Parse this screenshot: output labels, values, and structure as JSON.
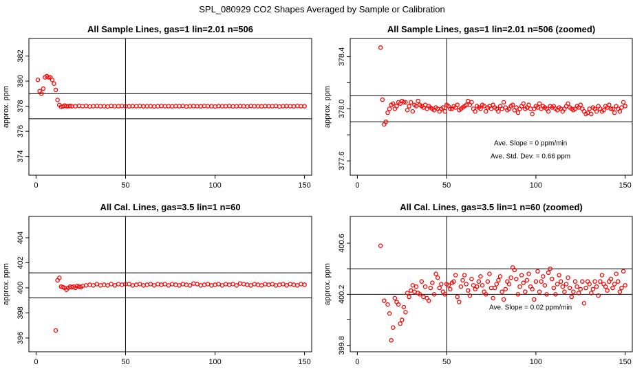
{
  "page_title": "SPL_080929  CO2 Shapes Averaged by Sample or Calibration",
  "chart_data": [
    {
      "type": "scatter",
      "title": "All Sample Lines, gas=1 lin=2.01 n=506",
      "ylabel": "approx. ppm",
      "xlabel": "",
      "xlim": [
        -4,
        154
      ],
      "ylim": [
        372.5,
        383.4
      ],
      "xticks": [
        0,
        50,
        100,
        150
      ],
      "yticks": [
        374,
        376,
        378,
        380,
        382
      ],
      "hlines": [
        379.0,
        377.0
      ],
      "vline": 50,
      "marker_color": "#ff0000",
      "points": {
        "x": [
          1,
          2,
          3,
          4,
          5,
          6,
          7,
          8,
          9,
          10,
          11,
          12,
          13,
          14,
          15,
          16,
          17,
          18,
          19,
          20,
          22,
          24,
          26,
          28,
          30,
          32,
          34,
          36,
          38,
          40,
          42,
          44,
          46,
          48,
          50,
          52,
          54,
          56,
          58,
          60,
          62,
          64,
          66,
          68,
          70,
          72,
          74,
          76,
          78,
          80,
          82,
          84,
          86,
          88,
          90,
          92,
          94,
          96,
          98,
          100,
          102,
          104,
          106,
          108,
          110,
          112,
          114,
          116,
          118,
          120,
          122,
          124,
          126,
          128,
          130,
          132,
          134,
          136,
          138,
          140,
          142,
          144,
          146,
          148,
          150
        ],
        "y": [
          380.1,
          379.2,
          379.0,
          379.4,
          380.3,
          380.4,
          380.3,
          380.3,
          380.1,
          379.8,
          379.3,
          378.5,
          378.1,
          377.95,
          377.98,
          378.05,
          378.0,
          378.0,
          378.02,
          378.0,
          378.0,
          378.03,
          378.0,
          378.02,
          377.98,
          378.0,
          378.02,
          378.0,
          378.0,
          377.98,
          378.02,
          378.0,
          378.0,
          378.02,
          378.0,
          377.99,
          378.01,
          378.0,
          378.02,
          377.99,
          378.0,
          378.01,
          377.98,
          378.0,
          378.02,
          378.0,
          378.0,
          377.99,
          378.01,
          378.0,
          378.02,
          377.98,
          378.0,
          378.01,
          378.0,
          377.99,
          378.02,
          378.0,
          378.0,
          377.98,
          378.01,
          378.0,
          378.0,
          378.02,
          377.99,
          378.0,
          378.01,
          378.0,
          377.98,
          378.02,
          378.0,
          378.0,
          377.99,
          378.01,
          378.0,
          378.0,
          378.02,
          377.98,
          378.0,
          378.01,
          378.0,
          377.99,
          378.02,
          378.0,
          378.0
        ]
      },
      "annotations": []
    },
    {
      "type": "scatter",
      "title": "All Sample Lines, gas=1 lin=2.01 n=506 (zoomed)",
      "ylabel": "approx. ppm",
      "xlabel": "",
      "xlim": [
        -4,
        154
      ],
      "ylim": [
        377.49,
        378.54
      ],
      "xticks": [
        0,
        50,
        100,
        150
      ],
      "yticks": [
        377.6,
        377.8,
        378.0,
        378.2,
        378.4
      ],
      "ytick_labels": [
        "377.6",
        "",
        "378.0",
        "",
        "378.4"
      ],
      "hlines": [
        378.1,
        377.9
      ],
      "vline": 50,
      "marker_color": "#ff0000",
      "points": {
        "x": [
          13,
          14,
          15,
          16,
          17,
          18,
          19,
          20,
          21,
          22,
          23,
          24,
          25,
          26,
          27,
          28,
          29,
          30,
          31,
          32,
          33,
          34,
          35,
          36,
          37,
          38,
          39,
          40,
          41,
          42,
          43,
          44,
          45,
          46,
          47,
          48,
          49,
          50,
          51,
          52,
          53,
          54,
          55,
          56,
          57,
          58,
          59,
          60,
          61,
          62,
          63,
          64,
          65,
          66,
          67,
          68,
          69,
          70,
          71,
          72,
          73,
          74,
          75,
          76,
          77,
          78,
          79,
          80,
          81,
          82,
          83,
          84,
          85,
          86,
          87,
          88,
          89,
          90,
          91,
          92,
          93,
          94,
          95,
          96,
          97,
          98,
          99,
          100,
          101,
          102,
          103,
          104,
          105,
          106,
          107,
          108,
          109,
          110,
          111,
          112,
          113,
          114,
          115,
          116,
          117,
          118,
          119,
          120,
          121,
          122,
          123,
          124,
          125,
          126,
          127,
          128,
          129,
          130,
          131,
          132,
          133,
          134,
          135,
          136,
          137,
          138,
          139,
          140,
          141,
          142,
          143,
          144,
          145,
          146,
          147,
          148,
          149,
          150
        ],
        "y": [
          378.47,
          378.07,
          377.88,
          377.9,
          377.97,
          378.0,
          378.03,
          378.04,
          378.0,
          378.02,
          378.05,
          378.04,
          378.06,
          378.05,
          378.05,
          377.99,
          378.02,
          378.05,
          377.98,
          378.03,
          378.02,
          378.06,
          378.03,
          378.02,
          378.01,
          378.03,
          378.0,
          378.02,
          378.01,
          378.0,
          377.99,
          378.01,
          378.0,
          377.98,
          378.0,
          378.01,
          377.98,
          378.03,
          378.02,
          378.0,
          378.0,
          378.02,
          378.01,
          378.03,
          377.99,
          378.0,
          378.01,
          378.02,
          378.03,
          378.06,
          378.03,
          378.05,
          378.0,
          377.98,
          378.02,
          378.01,
          378.0,
          378.03,
          378.02,
          377.98,
          378.01,
          378.02,
          378.0,
          378.03,
          378.01,
          378.0,
          377.98,
          378.02,
          378.0,
          378.05,
          378.01,
          377.99,
          378.0,
          378.02,
          378.03,
          377.99,
          378.01,
          377.97,
          378.0,
          378.02,
          378.04,
          378.0,
          378.01,
          378.03,
          378.0,
          377.96,
          378.0,
          378.02,
          378.01,
          378.04,
          378.0,
          378.02,
          378.01,
          378.0,
          377.98,
          378.02,
          378.01,
          378.02,
          378.0,
          377.99,
          378.01,
          378.0,
          377.98,
          378.0,
          378.02,
          378.04,
          378.01,
          378.0,
          377.99,
          378.0,
          378.02,
          378.01,
          378.03,
          378.0,
          377.98,
          377.96,
          377.97,
          378.0,
          377.96,
          378.01,
          378.0,
          377.98,
          378.02,
          378.0,
          377.98,
          377.99,
          378.02,
          378.01,
          378.03,
          378.0,
          378.0,
          377.97,
          378.02,
          378.0,
          377.98,
          378.01,
          378.05,
          378.02
        ]
      },
      "annotations": [
        {
          "text": "Ave. Slope =  0  ppm/min",
          "x": 97,
          "y": 377.72
        },
        {
          "text": "Ave. Std. Dev. =  0.66  ppm",
          "x": 97,
          "y": 377.62
        }
      ]
    },
    {
      "type": "scatter",
      "title": "All Cal. Lines, gas=3.5 lin=1 n=60",
      "ylabel": "approx. ppm",
      "xlabel": "",
      "xlim": [
        -4,
        154
      ],
      "ylim": [
        394.9,
        405.7
      ],
      "xticks": [
        0,
        50,
        100,
        150
      ],
      "yticks": [
        396,
        398,
        400,
        402,
        404
      ],
      "hlines": [
        401.2,
        399.2
      ],
      "vline": 50,
      "marker_color": "#ff0000",
      "points": {
        "x": [
          11,
          12,
          13,
          14,
          15,
          16,
          17,
          18,
          19,
          20,
          21,
          22,
          23,
          24,
          25,
          26,
          28,
          30,
          32,
          34,
          36,
          38,
          40,
          42,
          44,
          46,
          48,
          50,
          52,
          54,
          56,
          58,
          60,
          62,
          64,
          66,
          68,
          70,
          72,
          74,
          76,
          78,
          80,
          82,
          84,
          86,
          88,
          90,
          92,
          94,
          96,
          98,
          100,
          102,
          104,
          106,
          108,
          110,
          112,
          114,
          116,
          118,
          120,
          122,
          124,
          126,
          128,
          130,
          132,
          134,
          136,
          138,
          140,
          142,
          144,
          146,
          148,
          150
        ],
        "y": [
          396.6,
          400.6,
          400.8,
          400.1,
          400.05,
          400.0,
          399.85,
          400.0,
          400.1,
          400.05,
          400.1,
          400.0,
          400.15,
          400.1,
          400.05,
          400.15,
          400.2,
          400.25,
          400.2,
          400.3,
          400.2,
          400.25,
          400.2,
          400.3,
          400.2,
          400.3,
          400.25,
          400.3,
          400.3,
          400.2,
          400.25,
          400.3,
          400.2,
          400.25,
          400.3,
          400.2,
          400.3,
          400.25,
          400.3,
          400.2,
          400.3,
          400.25,
          400.2,
          400.3,
          400.25,
          400.2,
          400.35,
          400.3,
          400.2,
          400.25,
          400.3,
          400.2,
          400.25,
          400.3,
          400.2,
          400.3,
          400.25,
          400.3,
          400.2,
          400.35,
          400.3,
          400.25,
          400.2,
          400.3,
          400.25,
          400.2,
          400.3,
          400.25,
          400.3,
          400.2,
          400.25,
          400.3,
          400.2,
          400.3,
          400.25,
          400.2,
          400.3,
          400.25
        ]
      },
      "annotations": []
    },
    {
      "type": "scatter",
      "title": "All Cal. Lines, gas=3.5 lin=1 n=60 (zoomed)",
      "ylabel": "approx. ppm",
      "xlabel": "",
      "xlim": [
        -4,
        154
      ],
      "ylim": [
        399.75,
        400.81
      ],
      "xticks": [
        0,
        50,
        100,
        150
      ],
      "yticks": [
        399.8,
        400.0,
        400.2,
        400.4,
        400.6
      ],
      "ytick_labels": [
        "399.8",
        "",
        "400.2",
        "",
        "400.6"
      ],
      "hlines": [
        400.4,
        400.2
      ],
      "vline": 50,
      "marker_color": "#ff0000",
      "points": {
        "x": [
          13,
          15,
          17,
          18,
          19,
          20,
          21,
          22,
          23,
          24,
          25,
          26,
          27,
          28,
          29,
          30,
          31,
          32,
          33,
          34,
          35,
          36,
          37,
          38,
          39,
          40,
          41,
          42,
          43,
          44,
          45,
          46,
          47,
          48,
          49,
          50,
          51,
          52,
          53,
          54,
          55,
          56,
          57,
          58,
          59,
          60,
          61,
          62,
          63,
          64,
          65,
          66,
          67,
          68,
          69,
          70,
          71,
          72,
          73,
          74,
          75,
          76,
          77,
          78,
          79,
          80,
          81,
          82,
          83,
          84,
          85,
          86,
          87,
          88,
          89,
          90,
          91,
          92,
          93,
          94,
          95,
          96,
          97,
          98,
          99,
          100,
          101,
          102,
          103,
          104,
          105,
          106,
          107,
          108,
          109,
          110,
          111,
          112,
          113,
          114,
          115,
          116,
          117,
          118,
          119,
          120,
          121,
          122,
          123,
          124,
          125,
          126,
          127,
          128,
          129,
          130,
          131,
          132,
          133,
          134,
          135,
          136,
          137,
          138,
          139,
          140,
          141,
          142,
          143,
          144,
          145,
          146,
          147,
          148,
          149,
          150
        ],
        "y": [
          400.58,
          400.15,
          400.12,
          400.05,
          399.84,
          399.94,
          400.17,
          400.14,
          400.12,
          399.97,
          400.0,
          400.1,
          400.06,
          400.21,
          400.18,
          400.23,
          400.27,
          400.22,
          400.26,
          400.21,
          400.2,
          400.3,
          400.18,
          400.26,
          400.17,
          400.15,
          400.25,
          400.29,
          400.2,
          400.36,
          400.33,
          400.25,
          400.28,
          400.22,
          400.2,
          400.28,
          400.27,
          400.24,
          400.29,
          400.3,
          400.35,
          400.18,
          400.14,
          400.26,
          400.31,
          400.35,
          400.28,
          400.23,
          400.19,
          400.32,
          400.27,
          400.24,
          400.26,
          400.3,
          400.34,
          400.27,
          400.22,
          400.2,
          400.3,
          400.36,
          400.25,
          400.17,
          400.25,
          400.28,
          400.31,
          400.34,
          400.22,
          400.16,
          400.24,
          400.3,
          400.28,
          400.33,
          400.41,
          400.39,
          400.32,
          400.2,
          400.26,
          400.35,
          400.29,
          400.22,
          400.31,
          400.36,
          400.26,
          400.24,
          400.16,
          400.3,
          400.38,
          400.22,
          400.3,
          400.34,
          400.27,
          400.2,
          400.37,
          400.4,
          400.32,
          400.25,
          400.2,
          400.28,
          400.35,
          400.3,
          400.26,
          400.22,
          400.28,
          400.33,
          400.25,
          400.18,
          400.22,
          400.3,
          400.26,
          400.21,
          400.24,
          400.3,
          400.13,
          400.25,
          400.3,
          400.28,
          400.21,
          400.24,
          400.3,
          400.26,
          400.19,
          400.3,
          400.35,
          400.28,
          400.26,
          400.23,
          400.3,
          400.32,
          400.25,
          400.28,
          400.36,
          400.3,
          400.22,
          400.25,
          400.38,
          400.27
        ]
      },
      "annotations": [
        {
          "text": "Ave. Slope =  0.02  ppm/min",
          "x": 97,
          "y": 400.08
        }
      ]
    }
  ]
}
